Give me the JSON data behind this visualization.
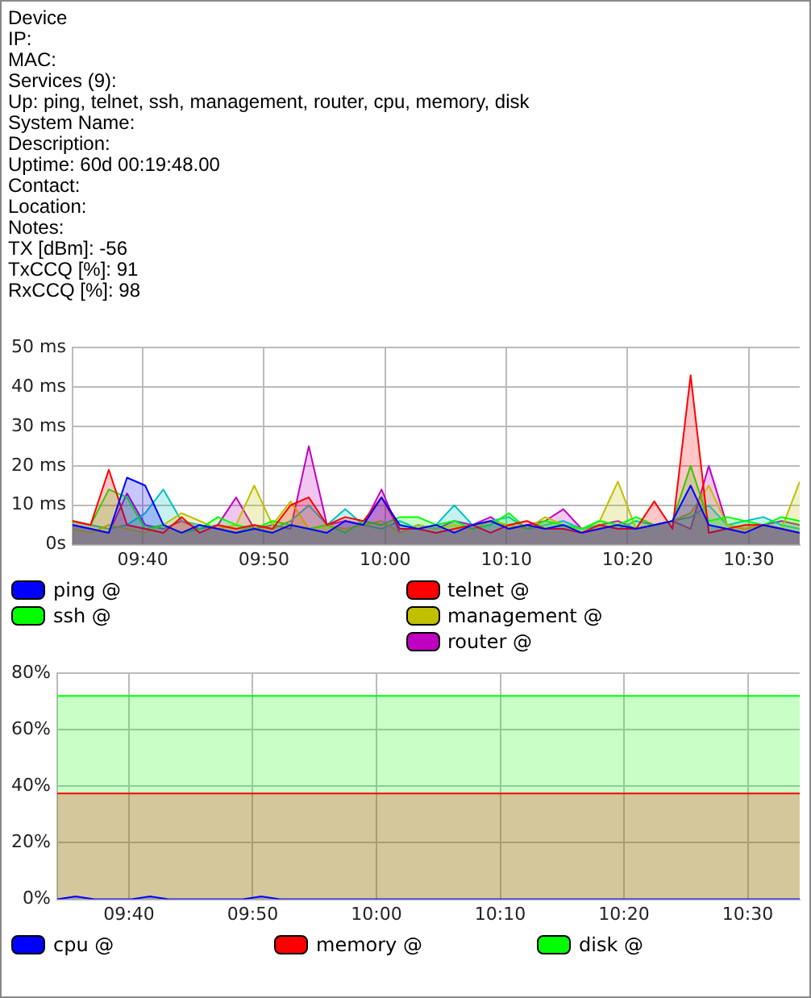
{
  "chart_data": [
    {
      "type": "other",
      "annotations": [
        "Device",
        "IP:",
        "MAC:",
        "Services (9):",
        "Up: ping, telnet, ssh, management, router, cpu, memory, disk",
        "System Name:",
        "Description:",
        "Uptime: 60d 00:19:48.00",
        "Contact:",
        "Location:",
        "Notes:",
        "TX [dBm]: -56",
        "TxCCQ [%]: 91",
        "RxCCQ [%]: 98"
      ]
    },
    {
      "type": "area",
      "x": [
        9.57,
        9.595,
        9.62,
        9.645,
        9.67,
        9.695,
        9.72,
        9.745,
        9.77,
        9.795,
        9.82,
        9.845,
        9.87,
        9.895,
        9.92,
        9.945,
        9.97,
        9.995,
        10.02,
        10.045,
        10.07,
        10.095,
        10.12,
        10.145,
        10.17,
        10.195,
        10.22,
        10.245,
        10.27,
        10.295,
        10.32,
        10.345,
        10.37,
        10.395,
        10.42,
        10.445,
        10.47,
        10.495,
        10.52,
        10.545,
        10.57
      ],
      "xlim": [
        9.57,
        10.57
      ],
      "xticks": [
        {
          "value": 9.6667,
          "label": "09:40"
        },
        {
          "value": 9.8333,
          "label": "09:50"
        },
        {
          "value": 10,
          "label": "10:00"
        },
        {
          "value": 10.1667,
          "label": "10:10"
        },
        {
          "value": 10.3333,
          "label": "10:20"
        },
        {
          "value": 10.5,
          "label": "10:30"
        }
      ],
      "ylim": [
        0,
        50
      ],
      "yticks": [
        {
          "value": 0,
          "label": "0s"
        },
        {
          "value": 10,
          "label": "10 ms"
        },
        {
          "value": 20,
          "label": "20 ms"
        },
        {
          "value": 30,
          "label": "30 ms"
        },
        {
          "value": 40,
          "label": "40 ms"
        },
        {
          "value": 50,
          "label": "50 ms"
        }
      ],
      "grid": true,
      "legend": "bottom",
      "series": [
        {
          "name": "ping @",
          "color": "#0000ff",
          "values": [
            5,
            4,
            3,
            17,
            15,
            5,
            3,
            5,
            4,
            3,
            4,
            3,
            5,
            4,
            3,
            6,
            5,
            12,
            5,
            4,
            5,
            3,
            5,
            6,
            4,
            5,
            4,
            5,
            3,
            4,
            5,
            4,
            5,
            6,
            15,
            5,
            4,
            3,
            5,
            4,
            3
          ]
        },
        {
          "name": "telnet @",
          "color": "#ff0000",
          "values": [
            6,
            5,
            19,
            5,
            4,
            3,
            7,
            3,
            5,
            4,
            5,
            4,
            10,
            12,
            5,
            7,
            6,
            12,
            4,
            4,
            3,
            4,
            5,
            3,
            5,
            6,
            4,
            4,
            3,
            5,
            4,
            4,
            11,
            4,
            43,
            3,
            4,
            5,
            5,
            4,
            3
          ]
        },
        {
          "name": "ssh @",
          "color": "#00ff00",
          "values": [
            6,
            5,
            14,
            12,
            4,
            5,
            3,
            4,
            7,
            5,
            4,
            6,
            5,
            4,
            5,
            3,
            6,
            5,
            7,
            7,
            5,
            6,
            4,
            5,
            8,
            4,
            6,
            5,
            4,
            6,
            5,
            7,
            5,
            6,
            20,
            6,
            7,
            6,
            5,
            7,
            6
          ]
        },
        {
          "name": "management @",
          "color": "#c0c000",
          "values": [
            4,
            3,
            5,
            4,
            3,
            5,
            8,
            6,
            4,
            5,
            15,
            5,
            11,
            4,
            5,
            4,
            5,
            6,
            3,
            5,
            4,
            5,
            4,
            6,
            5,
            4,
            7,
            5,
            4,
            6,
            16,
            4,
            5,
            6,
            8,
            15,
            5,
            4,
            5,
            4,
            16
          ]
        },
        {
          "color": "#00c0c0",
          "values": [
            6,
            5,
            4,
            5,
            8,
            14,
            6,
            5,
            4,
            3,
            5,
            4,
            6,
            10,
            5,
            9,
            5,
            4,
            6,
            4,
            5,
            10,
            5,
            6,
            7,
            4,
            5,
            6,
            4,
            5,
            4,
            6,
            5,
            6,
            7,
            10,
            5,
            6,
            7,
            5,
            4
          ]
        },
        {
          "name": "router @",
          "color": "#c000c0",
          "values": [
            5,
            4,
            3,
            13,
            5,
            4,
            6,
            4,
            5,
            12,
            4,
            5,
            4,
            25,
            5,
            6,
            5,
            14,
            3,
            5,
            4,
            6,
            5,
            7,
            4,
            5,
            6,
            9,
            4,
            5,
            6,
            4,
            5,
            6,
            4,
            20,
            5,
            4,
            5,
            6,
            5
          ]
        }
      ]
    },
    {
      "type": "area",
      "x": [
        9.57,
        9.595,
        9.62,
        9.645,
        9.67,
        9.695,
        9.72,
        9.745,
        9.77,
        9.795,
        9.82,
        9.845,
        9.87,
        9.895,
        9.92,
        9.945,
        9.97,
        9.995,
        10.02,
        10.045,
        10.07,
        10.095,
        10.12,
        10.145,
        10.17,
        10.195,
        10.22,
        10.245,
        10.27,
        10.295,
        10.32,
        10.345,
        10.37,
        10.395,
        10.42,
        10.445,
        10.47,
        10.495,
        10.52,
        10.545,
        10.57
      ],
      "xlim": [
        9.57,
        10.57
      ],
      "xticks": [
        {
          "value": 9.6667,
          "label": "09:40"
        },
        {
          "value": 9.8333,
          "label": "09:50"
        },
        {
          "value": 10,
          "label": "10:00"
        },
        {
          "value": 10.1667,
          "label": "10:10"
        },
        {
          "value": 10.3333,
          "label": "10:20"
        },
        {
          "value": 10.5,
          "label": "10:30"
        }
      ],
      "ylim": [
        0,
        80
      ],
      "yticks": [
        {
          "value": 0,
          "label": "0%"
        },
        {
          "value": 20,
          "label": "20%"
        },
        {
          "value": 40,
          "label": "40%"
        },
        {
          "value": 60,
          "label": "60%"
        },
        {
          "value": 80,
          "label": "80%"
        }
      ],
      "grid": true,
      "legend": "bottom",
      "series": [
        {
          "name": "cpu @",
          "color": "#0000ff",
          "values": [
            0,
            1,
            0,
            0,
            0,
            1,
            0,
            0,
            0,
            0,
            0,
            1,
            0,
            0,
            0,
            0,
            0,
            0,
            0,
            0,
            0,
            0,
            0,
            0,
            0,
            0,
            0,
            0,
            0,
            0,
            0,
            0,
            0,
            0,
            0,
            0,
            0,
            0,
            0,
            0,
            0
          ]
        },
        {
          "name": "memory @",
          "color": "#ff0000",
          "values": [
            37.5,
            37.5,
            37.5,
            37.5,
            37.5,
            37.5,
            37.5,
            37.5,
            37.5,
            37.5,
            37.5,
            37.5,
            37.5,
            37.5,
            37.5,
            37.5,
            37.5,
            37.5,
            37.5,
            37.5,
            37.5,
            37.5,
            37.5,
            37.5,
            37.5,
            37.5,
            37.5,
            37.5,
            37.5,
            37.5,
            37.5,
            37.5,
            37.5,
            37.5,
            37.5,
            37.5,
            37.5,
            37.5,
            37.5,
            37.5,
            37.5
          ]
        },
        {
          "name": "disk @",
          "color": "#00ff00",
          "values": [
            72,
            72,
            72,
            72,
            72,
            72,
            72,
            72,
            72,
            72,
            72,
            72,
            72,
            72,
            72,
            72,
            72,
            72,
            72,
            72,
            72,
            72,
            72,
            72,
            72,
            72,
            72,
            72,
            72,
            72,
            72,
            72,
            72,
            72,
            72,
            72,
            72,
            72,
            72,
            72,
            72
          ]
        }
      ]
    }
  ]
}
